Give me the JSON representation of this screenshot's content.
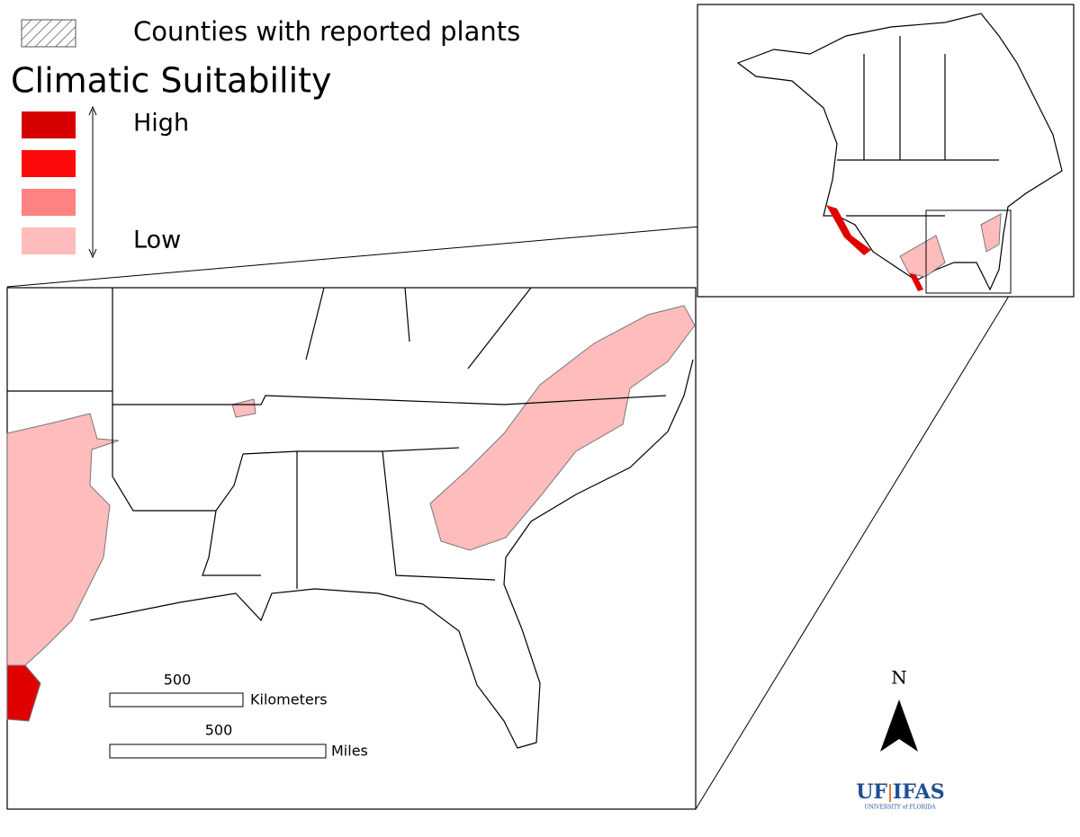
{
  "legend": {
    "hatch_label": "Counties with reported plants",
    "title": "Climatic Suitability",
    "high": "High",
    "low": "Low"
  },
  "scale": {
    "km_value": 500,
    "km_unit": "Kilometers",
    "mi_value": 500,
    "mi_unit": "Miles"
  },
  "north": "N",
  "logo": {
    "uf": "UF",
    "ifas": "IFAS",
    "university": "UNIVERSITY of FLORIDA"
  }
}
